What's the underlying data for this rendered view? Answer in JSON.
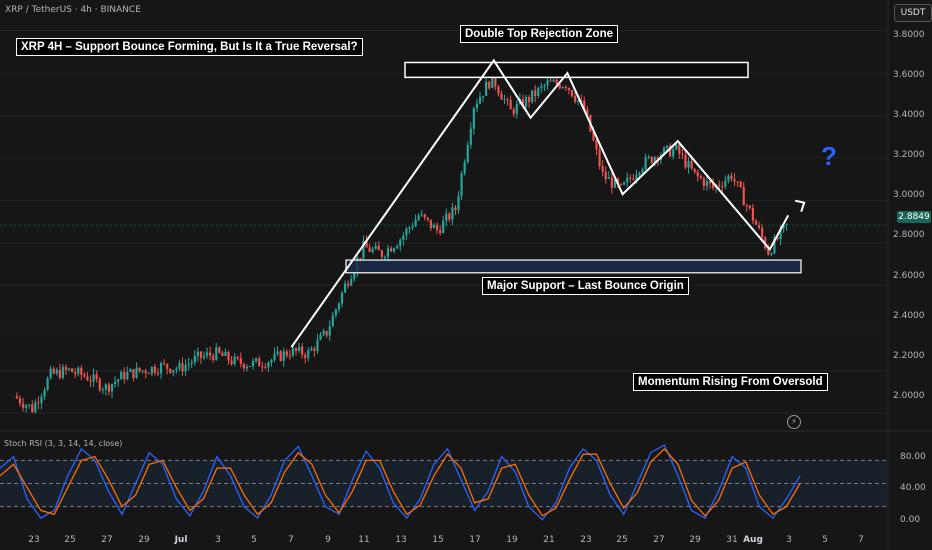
{
  "symbol": "XRP / TetherUS · 4h · BINANCE",
  "currency": "USDT",
  "current_price": "2.8849",
  "price_axis": [
    "3.8000",
    "3.6000",
    "3.4000",
    "3.2000",
    "3.0000",
    "2.8000",
    "2.6000",
    "2.4000",
    "2.2000",
    "2.0000"
  ],
  "indicator_axis": [
    "80.00",
    "40.00",
    "0.00"
  ],
  "x_axis": [
    "23",
    "25",
    "27",
    "29",
    "Jul",
    "3",
    "5",
    "7",
    "9",
    "11",
    "13",
    "15",
    "17",
    "19",
    "21",
    "23",
    "25",
    "27",
    "29",
    "31",
    "Aug",
    "3",
    "5",
    "7"
  ],
  "indicator_title": "Stoch RSI (3, 3, 14, 14, close)",
  "annotations": {
    "title": "XRP 4H – Support Bounce Forming, But Is It a True Reversal?",
    "resistance": "Double Top Rejection Zone",
    "support": "Major Support – Last Bounce Origin",
    "momentum": "Momentum Rising From Oversold",
    "question": "?"
  },
  "colors": {
    "up": "#26a69a",
    "down": "#ef5350",
    "stoch_k": "#2962ff",
    "stoch_d": "#ff6d00",
    "background": "#161616",
    "annotation_box": "#ffffff",
    "support_fill": "#1b2a4a"
  },
  "chart_data": {
    "type": "candlestick",
    "title": "",
    "timeframe": "4h",
    "ylim": [
      1.92,
      3.85
    ],
    "approx_close_path": [
      {
        "date": "Jun 22",
        "close": 2.08
      },
      {
        "date": "Jun 23",
        "close": 2.02
      },
      {
        "date": "Jun 24",
        "close": 2.18
      },
      {
        "date": "Jun 25",
        "close": 2.2
      },
      {
        "date": "Jun 26",
        "close": 2.17
      },
      {
        "date": "Jun 27",
        "close": 2.12
      },
      {
        "date": "Jun 28",
        "close": 2.18
      },
      {
        "date": "Jun 29",
        "close": 2.2
      },
      {
        "date": "Jun 30",
        "close": 2.22
      },
      {
        "date": "Jul 1",
        "close": 2.21
      },
      {
        "date": "Jul 2",
        "close": 2.26
      },
      {
        "date": "Jul 3",
        "close": 2.28
      },
      {
        "date": "Jul 4",
        "close": 2.24
      },
      {
        "date": "Jul 5",
        "close": 2.23
      },
      {
        "date": "Jul 6",
        "close": 2.25
      },
      {
        "date": "Jul 7",
        "close": 2.29
      },
      {
        "date": "Jul 8",
        "close": 2.28
      },
      {
        "date": "Jul 9",
        "close": 2.38
      },
      {
        "date": "Jul 10",
        "close": 2.6
      },
      {
        "date": "Jul 11",
        "close": 2.78
      },
      {
        "date": "Jul 12",
        "close": 2.75
      },
      {
        "date": "Jul 13",
        "close": 2.82
      },
      {
        "date": "Jul 14",
        "close": 2.93
      },
      {
        "date": "Jul 15",
        "close": 2.86
      },
      {
        "date": "Jul 16",
        "close": 2.96
      },
      {
        "date": "Jul 17",
        "close": 3.45
      },
      {
        "date": "Jul 18",
        "close": 3.58
      },
      {
        "date": "Jul 19",
        "close": 3.42
      },
      {
        "date": "Jul 20",
        "close": 3.48
      },
      {
        "date": "Jul 21",
        "close": 3.55
      },
      {
        "date": "Jul 22",
        "close": 3.55
      },
      {
        "date": "Jul 23",
        "close": 3.43
      },
      {
        "date": "Jul 24",
        "close": 3.12
      },
      {
        "date": "Jul 25",
        "close": 3.05
      },
      {
        "date": "Jul 26",
        "close": 3.16
      },
      {
        "date": "Jul 27",
        "close": 3.22
      },
      {
        "date": "Jul 28",
        "close": 3.24
      },
      {
        "date": "Jul 29",
        "close": 3.12
      },
      {
        "date": "Jul 30",
        "close": 3.06
      },
      {
        "date": "Jul 31",
        "close": 3.12
      },
      {
        "date": "Aug 1",
        "close": 2.95
      },
      {
        "date": "Aug 2",
        "close": 2.76
      },
      {
        "date": "Aug 3",
        "close": 2.88
      }
    ],
    "resistance_zone": [
      3.58,
      3.65
    ],
    "support_zone": [
      2.66,
      2.72
    ],
    "last_price": 2.8849,
    "zigzag_path": [
      {
        "date": "Jul 7",
        "price": 2.31
      },
      {
        "date": "Jul 18",
        "price": 3.66
      },
      {
        "date": "Jul 20",
        "price": 3.39
      },
      {
        "date": "Jul 22",
        "price": 3.6
      },
      {
        "date": "Jul 25",
        "price": 3.03
      },
      {
        "date": "Jul 28",
        "price": 3.28
      },
      {
        "date": "Aug 2",
        "price": 2.77
      },
      {
        "date": "Aug 3",
        "price": 2.93
      }
    ],
    "indicator": {
      "name": "Stoch RSI (3, 3, 14, 14, close)",
      "ylim": [
        0,
        100
      ],
      "levels": [
        80,
        50,
        20
      ],
      "series": [
        {
          "name": "K",
          "values": [
            70,
            85,
            30,
            5,
            15,
            60,
            95,
            80,
            40,
            10,
            50,
            90,
            75,
            30,
            8,
            40,
            85,
            60,
            20,
            5,
            35,
            80,
            98,
            60,
            20,
            10,
            55,
            92,
            70,
            25,
            5,
            30,
            75,
            95,
            55,
            15,
            40,
            85,
            65,
            20,
            3,
            25,
            70,
            95,
            80,
            35,
            10,
            50,
            90,
            100,
            60,
            15,
            5,
            40,
            85,
            70,
            20,
            5,
            30,
            60
          ]
        },
        {
          "name": "D",
          "values": [
            60,
            75,
            45,
            15,
            10,
            45,
            80,
            85,
            55,
            20,
            35,
            75,
            80,
            45,
            15,
            30,
            70,
            70,
            35,
            10,
            25,
            65,
            90,
            75,
            35,
            12,
            40,
            80,
            80,
            40,
            10,
            22,
            60,
            88,
            70,
            25,
            30,
            70,
            75,
            35,
            8,
            18,
            55,
            88,
            88,
            50,
            18,
            38,
            78,
            95,
            75,
            28,
            8,
            28,
            70,
            78,
            35,
            10,
            20,
            50
          ]
        }
      ]
    }
  }
}
